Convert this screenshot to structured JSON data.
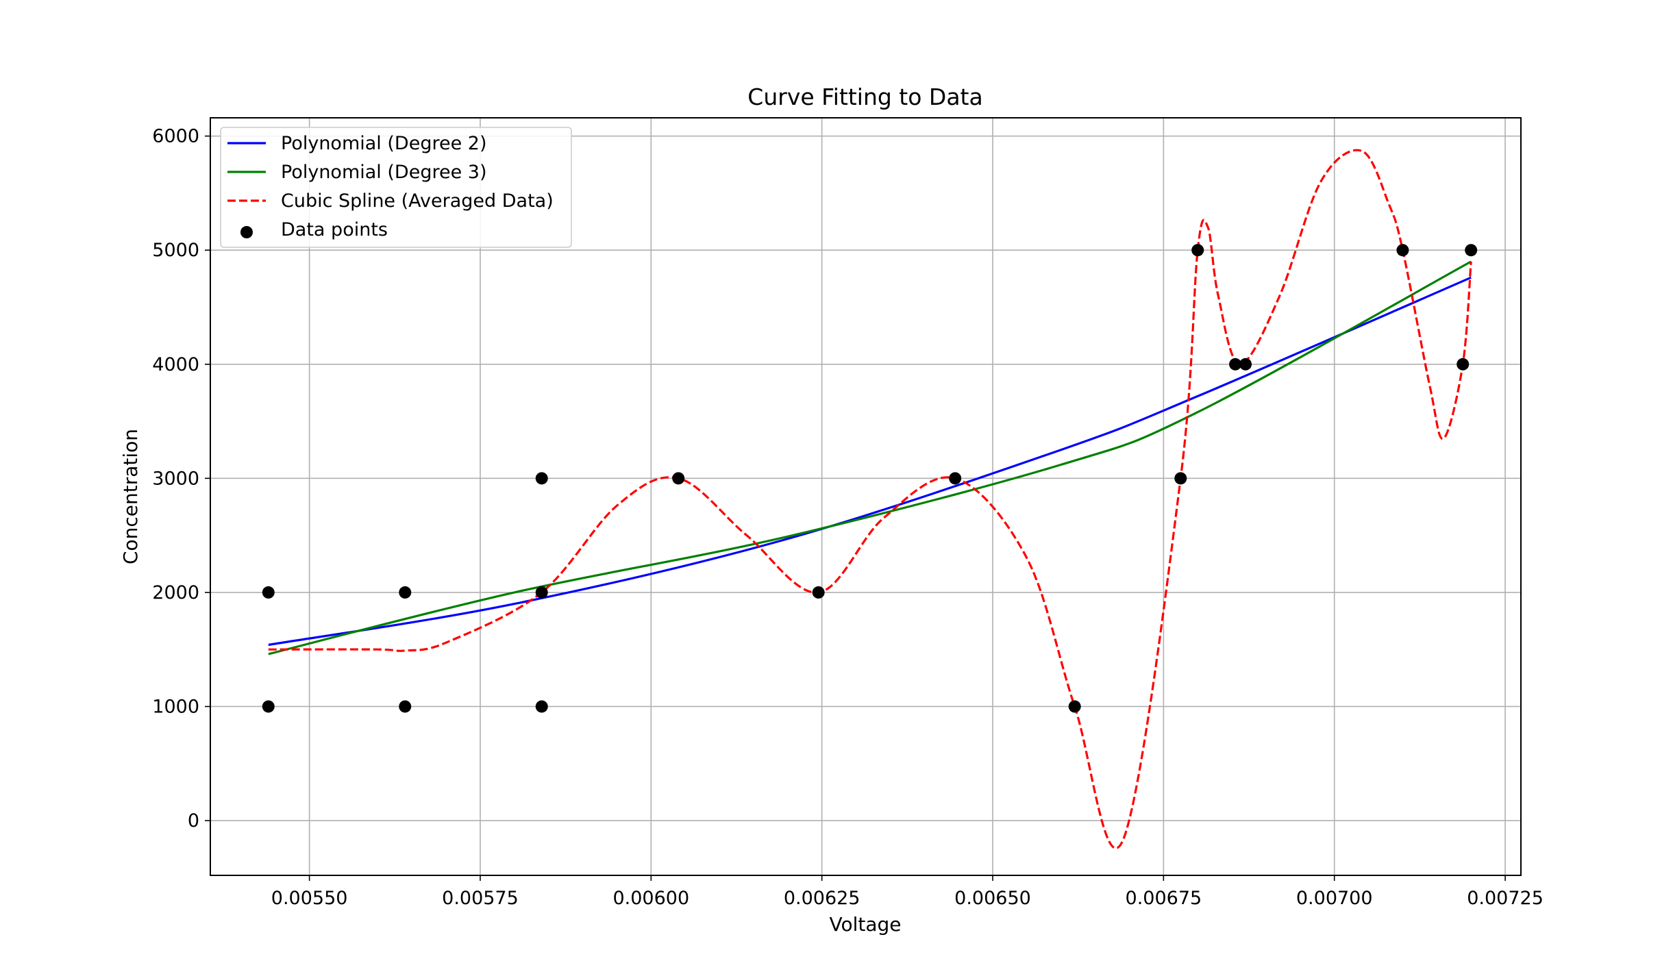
{
  "chart_data": {
    "type": "line",
    "title": "Curve Fitting to Data",
    "xlabel": "Voltage",
    "ylabel": "Concentration",
    "xlim": [
      0.005355,
      0.007273
    ],
    "ylim": [
      -480,
      6160
    ],
    "xticks": [
      0.0055,
      0.00575,
      0.006,
      0.00625,
      0.0065,
      0.00675,
      0.007,
      0.00725
    ],
    "xtick_labels": [
      "0.00550",
      "0.00575",
      "0.00600",
      "0.00625",
      "0.00650",
      "0.00675",
      "0.00700",
      "0.00725"
    ],
    "yticks": [
      0,
      1000,
      2000,
      3000,
      4000,
      5000,
      6000
    ],
    "ytick_labels": [
      "0",
      "1000",
      "2000",
      "3000",
      "4000",
      "5000",
      "6000"
    ],
    "grid": true,
    "legend_position": "top-left",
    "scatter": {
      "name": "Data points",
      "color": "#000000",
      "points": [
        [
          0.00544,
          2000
        ],
        [
          0.00544,
          1000
        ],
        [
          0.00564,
          2000
        ],
        [
          0.00564,
          1000
        ],
        [
          0.00584,
          3000
        ],
        [
          0.00584,
          2000
        ],
        [
          0.00584,
          1000
        ],
        [
          0.00604,
          3000
        ],
        [
          0.006245,
          2000
        ],
        [
          0.006445,
          3000
        ],
        [
          0.00662,
          1000
        ],
        [
          0.006775,
          3000
        ],
        [
          0.0068,
          5000
        ],
        [
          0.006855,
          4000
        ],
        [
          0.00687,
          4000
        ],
        [
          0.0071,
          5000
        ],
        [
          0.007188,
          4000
        ],
        [
          0.0072,
          5000
        ]
      ]
    },
    "series": [
      {
        "name": "Polynomial (Degree 2)",
        "color": "#0000ff",
        "style": "solid",
        "x": [
          0.00544,
          0.0058,
          0.0062,
          0.0066,
          0.0068,
          0.0072
        ],
        "y": [
          1540,
          1900,
          2470,
          3250,
          3720,
          4760
        ]
      },
      {
        "name": "Polynomial (Degree 3)",
        "color": "#008000",
        "style": "solid",
        "x": [
          0.00544,
          0.0058,
          0.0062,
          0.0066,
          0.0068,
          0.0072
        ],
        "y": [
          1460,
          2000,
          2490,
          3120,
          3580,
          4900
        ]
      },
      {
        "name": "Cubic Spline (Averaged Data)",
        "color": "#ff0000",
        "style": "dashed",
        "x": [
          0.00544,
          0.0056,
          0.00564,
          0.0057,
          0.00584,
          0.00595,
          0.00604,
          0.00614,
          0.006245,
          0.00634,
          0.006445,
          0.00655,
          0.00662,
          0.00669,
          0.006775,
          0.0068,
          0.006815,
          0.00683,
          0.006862,
          0.00692,
          0.00698,
          0.00704,
          0.00708,
          0.0071,
          0.00714,
          0.00716,
          0.007188,
          0.0072
        ],
        "y": [
          1500,
          1500,
          1490,
          1560,
          2000,
          2760,
          3000,
          2500,
          2000,
          2650,
          3000,
          2300,
          1000,
          -180,
          3000,
          5000,
          5200,
          4600,
          4000,
          4600,
          5600,
          5870,
          5400,
          5000,
          3800,
          3350,
          4000,
          4900
        ]
      }
    ]
  }
}
